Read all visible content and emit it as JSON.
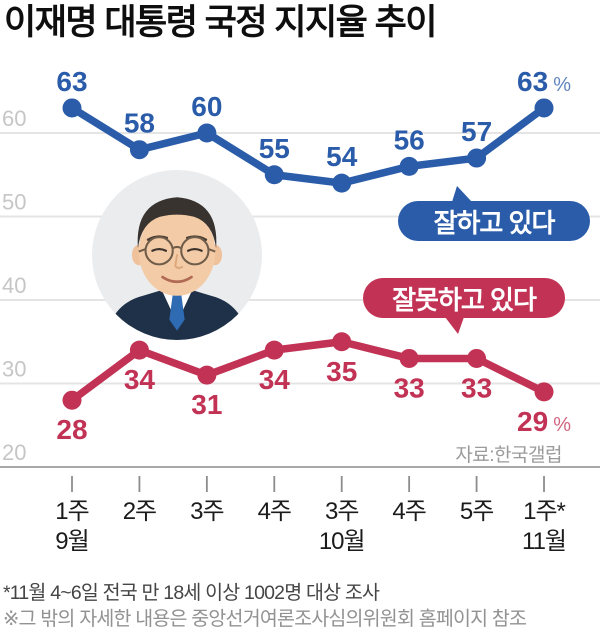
{
  "title": "이재명 대통령 국정 지지율 추이",
  "chart_data": {
    "type": "line",
    "categories": [
      "1주",
      "2주",
      "3주",
      "4주",
      "3주",
      "4주",
      "5주",
      "1주*"
    ],
    "category_months": [
      "9월",
      "",
      "",
      "",
      "10월",
      "",
      "",
      "11월"
    ],
    "series": [
      {
        "name": "잘하고 있다",
        "color": "#2a5caa",
        "values": [
          63,
          58,
          60,
          55,
          54,
          56,
          57,
          63
        ],
        "label_position": "above"
      },
      {
        "name": "잘못하고 있다",
        "color": "#c23255",
        "values": [
          28,
          34,
          31,
          34,
          35,
          33,
          33,
          29
        ],
        "label_position": "below"
      }
    ],
    "unit": "%",
    "yticks": [
      20,
      30,
      40,
      50,
      60
    ],
    "ylim": [
      20,
      68
    ],
    "grid": true,
    "legend_position": "middle-right bubbles",
    "source": "자료:한국갤럽"
  },
  "bubbles": {
    "positive": "잘하고 있다",
    "negative": "잘못하고 있다"
  },
  "colors": {
    "positive": "#2a5caa",
    "negative": "#c23255",
    "grid": "#e4e4e4",
    "axis": "#a8a8a8"
  },
  "footnotes": [
    "*11월 4~6일 전국 만 18세 이상 1002명 대상 조사",
    "※그 밖의 자세한 내용은 중앙선거여론조사심의위원회 홈페이지 참조"
  ]
}
